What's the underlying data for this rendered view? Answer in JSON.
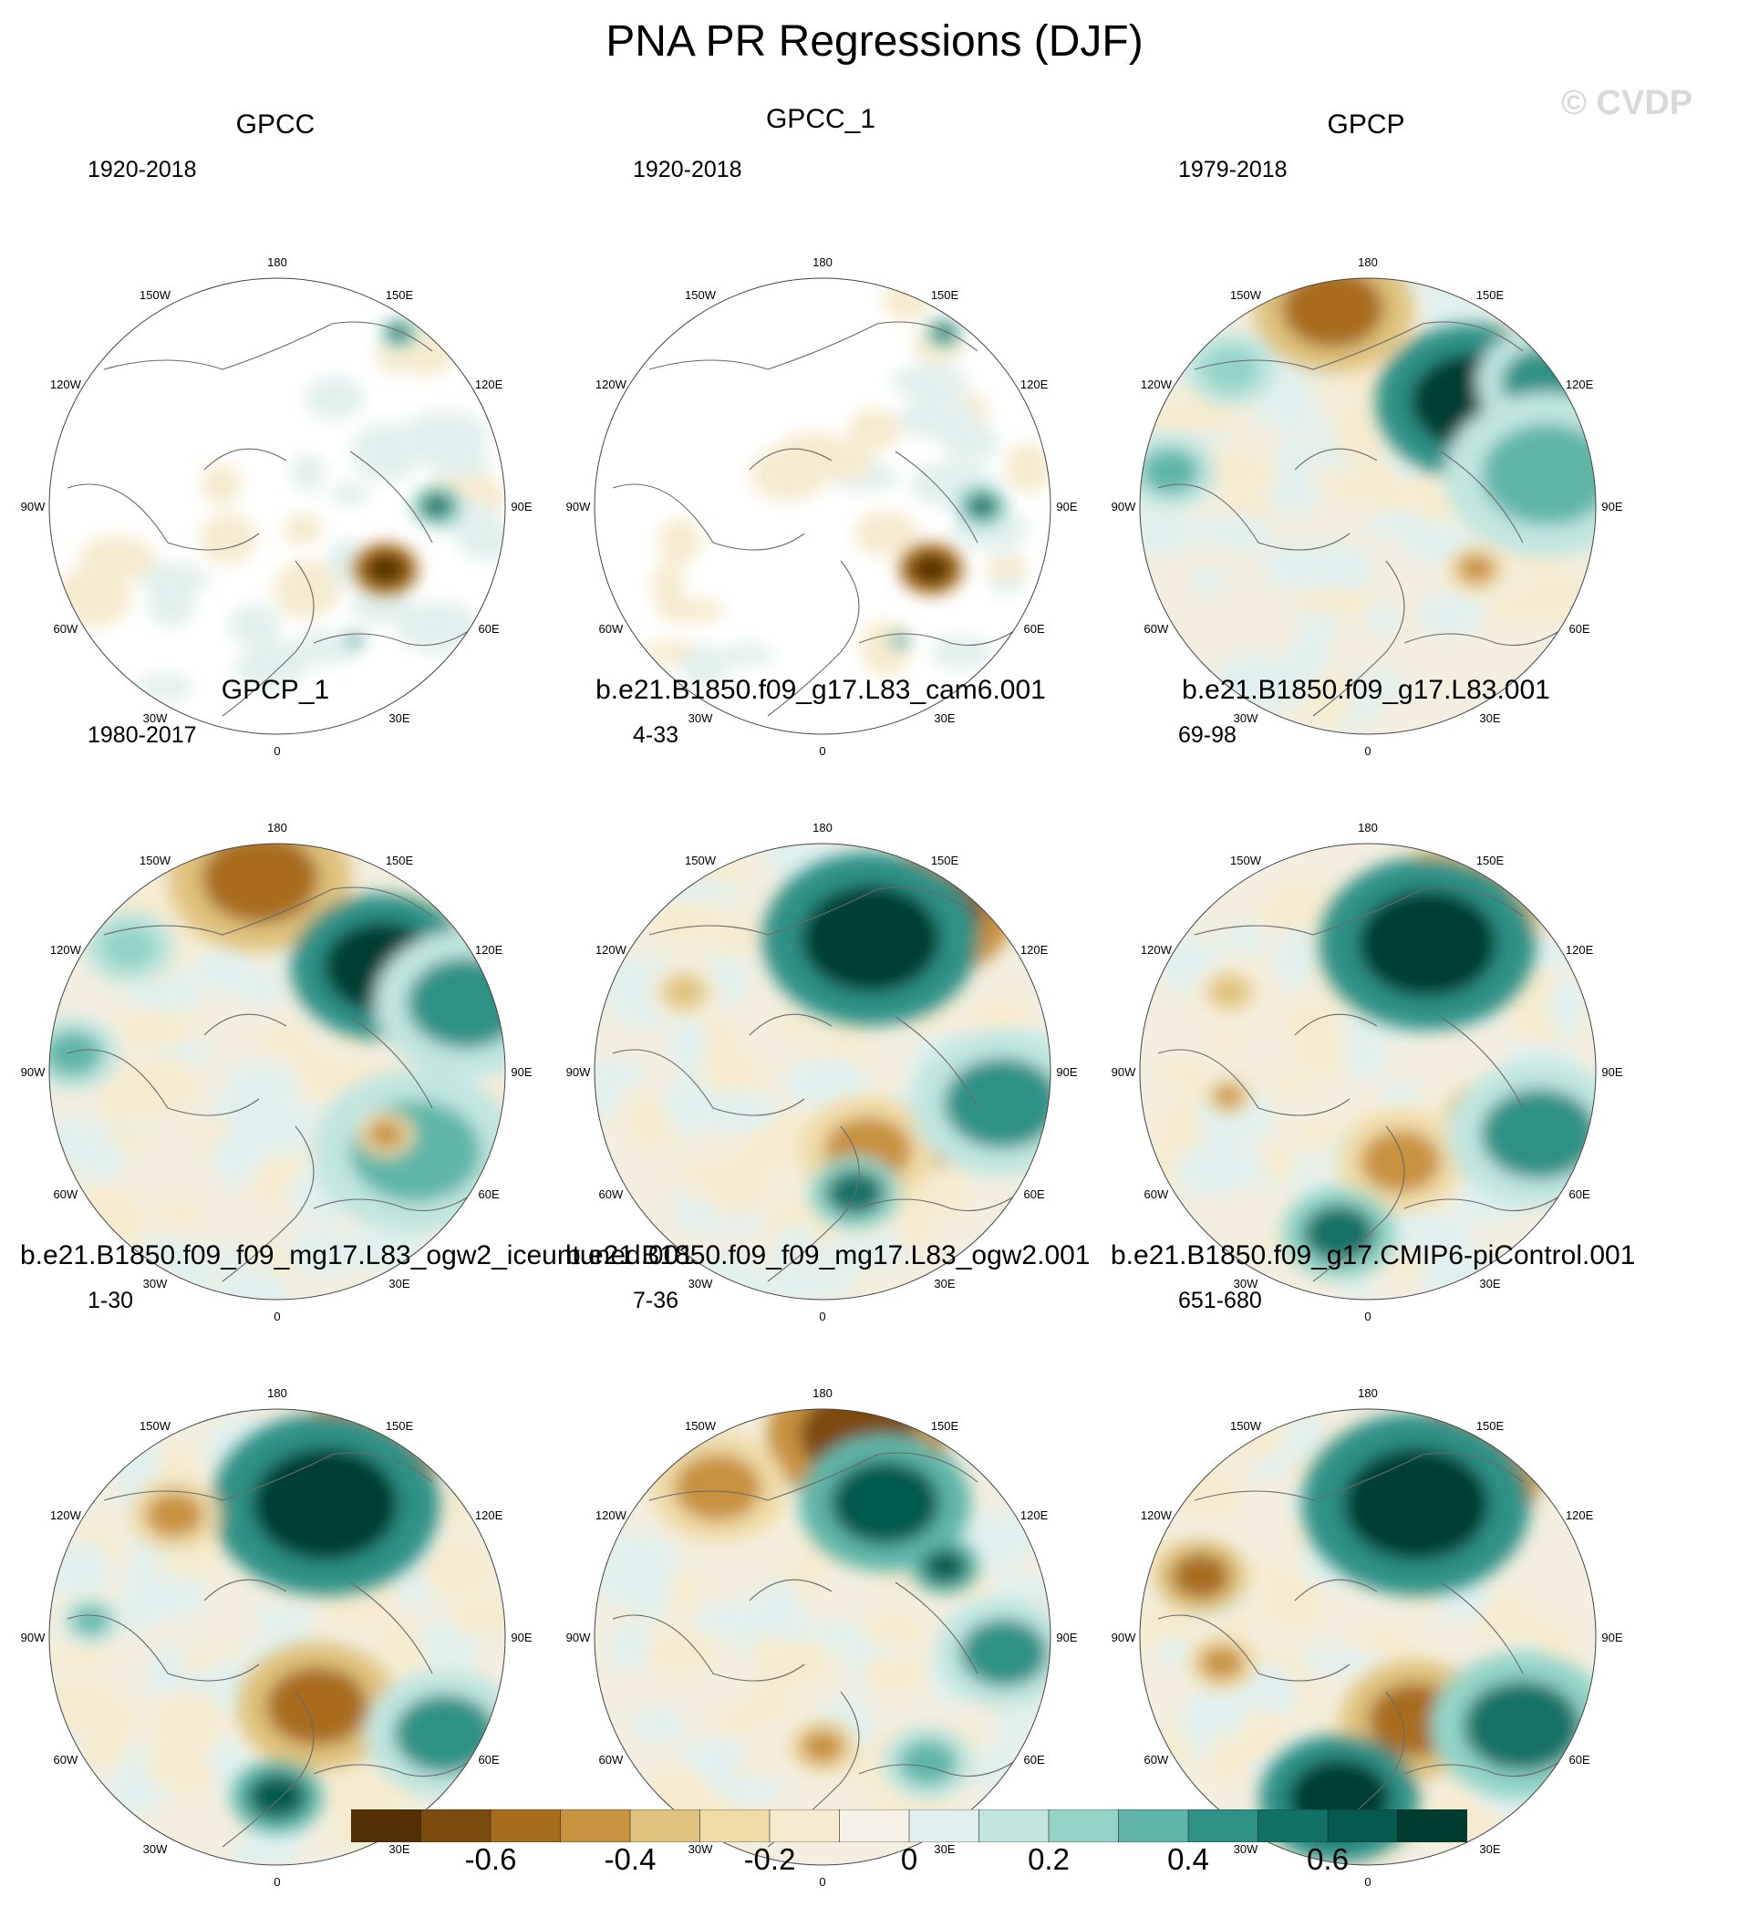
{
  "title": "PNA PR Regressions (DJF)",
  "watermark": "© CVDP",
  "chart_data": {
    "type": "heatmap",
    "projection": "polar stereographic (Northern Hemisphere)",
    "variable": "PR regression onto PNA index",
    "season": "DJF",
    "panels": [
      {
        "title": "GPCC",
        "period": "1920-2018",
        "coverage": "land-only"
      },
      {
        "title": "GPCC_1",
        "period": "1920-2018",
        "coverage": "land-only"
      },
      {
        "title": "GPCP",
        "period": "1979-2018",
        "coverage": "global"
      },
      {
        "title": "GPCP_1",
        "period": "1980-2017",
        "coverage": "global"
      },
      {
        "title": "b.e21.B1850.f09_g17.L83_cam6.001",
        "period": "4-33",
        "coverage": "global"
      },
      {
        "title": "b.e21.B1850.f09_g17.L83.001",
        "period": "69-98",
        "coverage": "global"
      },
      {
        "title": "b.e21.B1850.f09_f09_mg17.L83_ogw2_iceuntuned.001",
        "period": "1-30",
        "coverage": "global"
      },
      {
        "title": "b.e21.B1850.f09_f09_mg17.L83_ogw2.001",
        "period": "7-36",
        "coverage": "global"
      },
      {
        "title": "b.e21.B1850.f09_g17.CMIP6-piControl.001",
        "period": "651-680",
        "coverage": "global"
      }
    ],
    "longitude_labels": [
      "180",
      "150E",
      "120E",
      "90E",
      "60E",
      "30E",
      "0",
      "30W",
      "60W",
      "90W",
      "120W",
      "150W"
    ],
    "colorbar": {
      "levels": [
        -0.7,
        -0.6,
        -0.5,
        -0.4,
        -0.3,
        -0.2,
        -0.1,
        0,
        0.1,
        0.2,
        0.3,
        0.4,
        0.5,
        0.6,
        0.7
      ],
      "tick_labels": [
        "-0.6",
        "-0.4",
        "-0.2",
        "0",
        "0.2",
        "0.4",
        "0.6"
      ],
      "tick_values": [
        -0.6,
        -0.4,
        -0.2,
        0,
        0.2,
        0.4,
        0.6
      ],
      "colors": [
        "#543005",
        "#7d4a0e",
        "#a86c1d",
        "#c8923f",
        "#dfc27d",
        "#f0dca8",
        "#f6ebcf",
        "#f5f1e6",
        "#e1f0ee",
        "#c1e6e0",
        "#93d4c7",
        "#5fb6a8",
        "#2e9186",
        "#127166",
        "#045a4e",
        "#003c30"
      ]
    }
  }
}
